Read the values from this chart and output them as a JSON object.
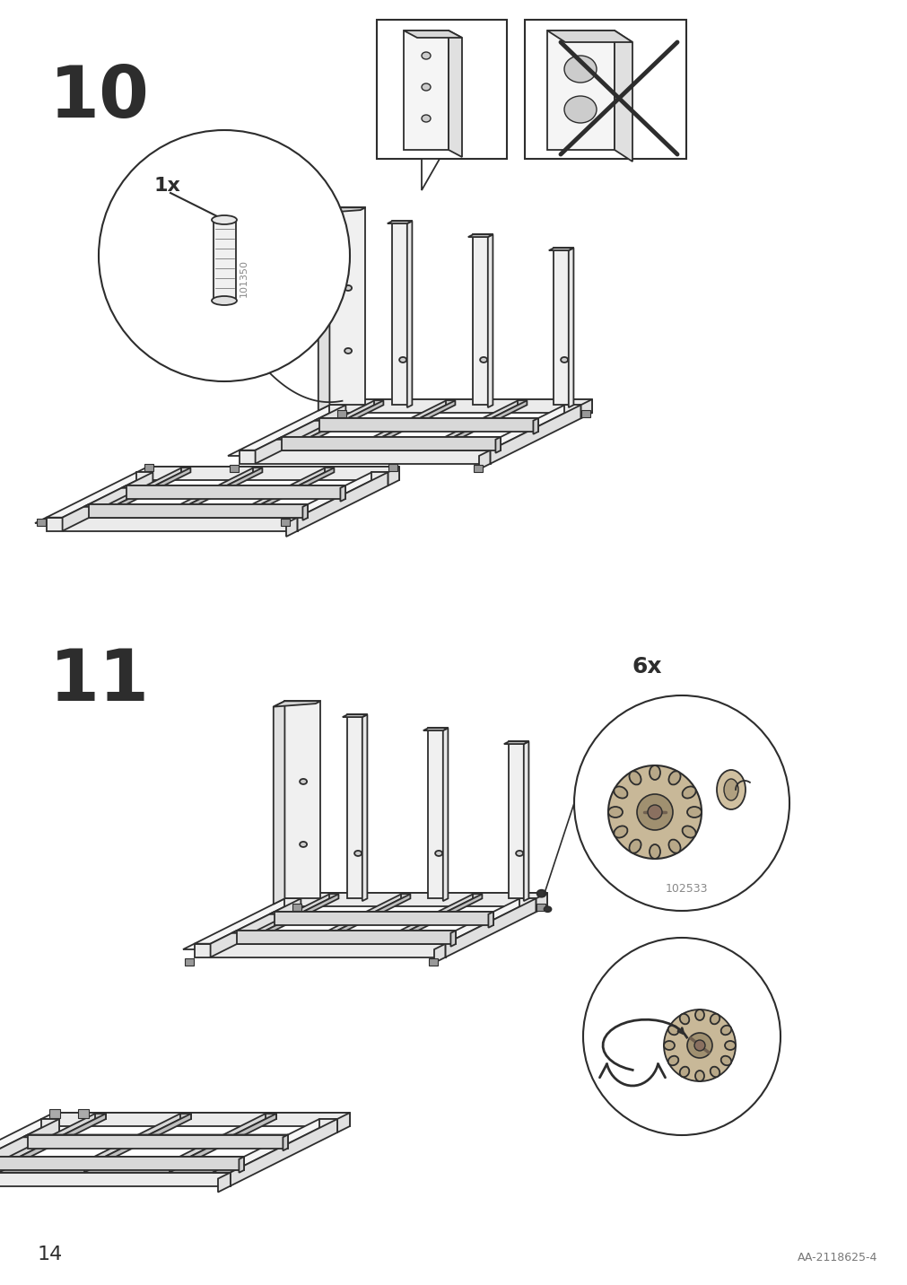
{
  "page_number": "14",
  "doc_id": "AA-2118625-4",
  "step10_label": "10",
  "step11_label": "11",
  "part_id_step10": "101350",
  "part_qty_step10": "1x",
  "part_id_step11": "102533",
  "part_qty_step11": "6x",
  "bg_color": "#ffffff",
  "lc": "#2d2d2d",
  "gray": "#888888",
  "light": "#f0f0f0",
  "mid_gray": "#cccccc"
}
